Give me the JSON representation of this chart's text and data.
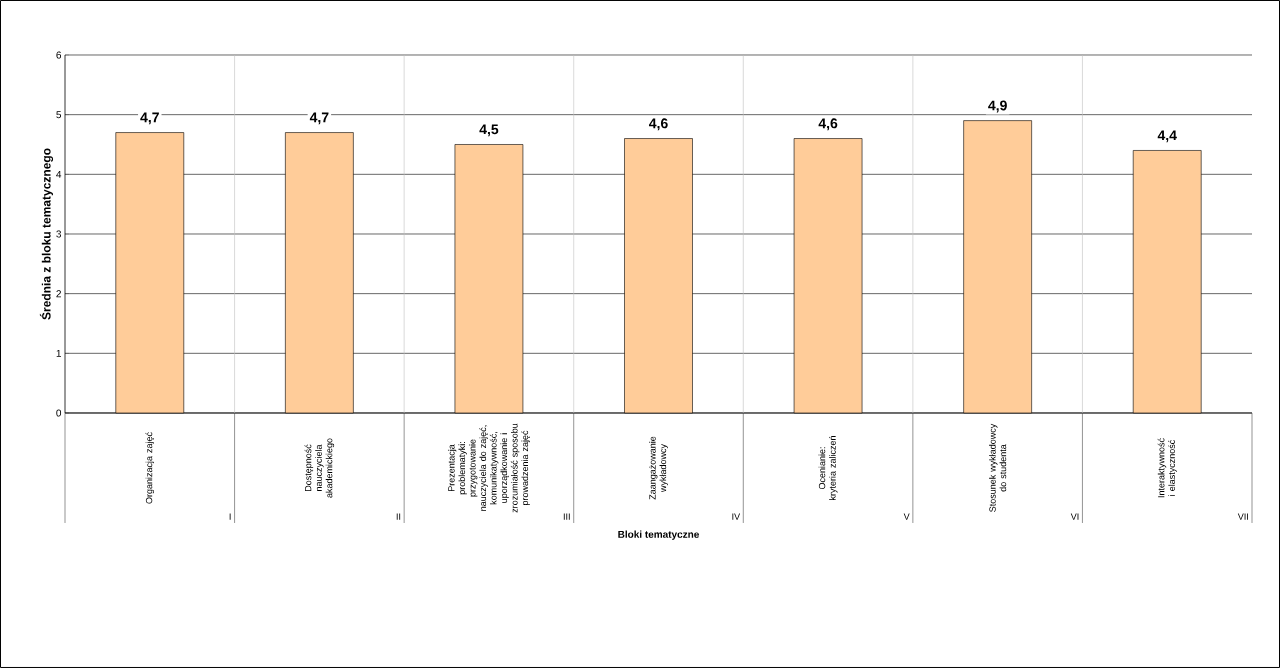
{
  "chart_data": {
    "type": "bar",
    "categories": [
      "Organizacja zajęć",
      "Dostępność nauczyciela akademickiego",
      "Prezentacja problematyki: przygotowanie nauczyciela do zajęć, komunikatywność, uporządkowanie i zrozumiałość sposobu prowadzenia zajęć",
      "Zaangażowanie wykładowcy",
      "Ocenianie: kryteria zaliczeń",
      "Stosunek wykładowcy do studenta",
      "Interaktywność i elastyczność"
    ],
    "values": [
      4.7,
      4.7,
      4.5,
      4.6,
      4.6,
      4.9,
      4.4
    ],
    "value_labels": [
      "4,7",
      "4,7",
      "4,5",
      "4,6",
      "4,6",
      "4,9",
      "4,4"
    ],
    "color": "#ffcc99",
    "xlabel": "Bloki tematyczne",
    "ylabel": "Średnia z bloku tematycznego",
    "annotations": [
      "I",
      "II",
      "III",
      "IV",
      "V",
      "VI",
      "VII"
    ],
    "ylim": [
      0,
      6
    ],
    "yticks": [
      0,
      1,
      2,
      3,
      4,
      5,
      6
    ],
    "grid": true
  }
}
